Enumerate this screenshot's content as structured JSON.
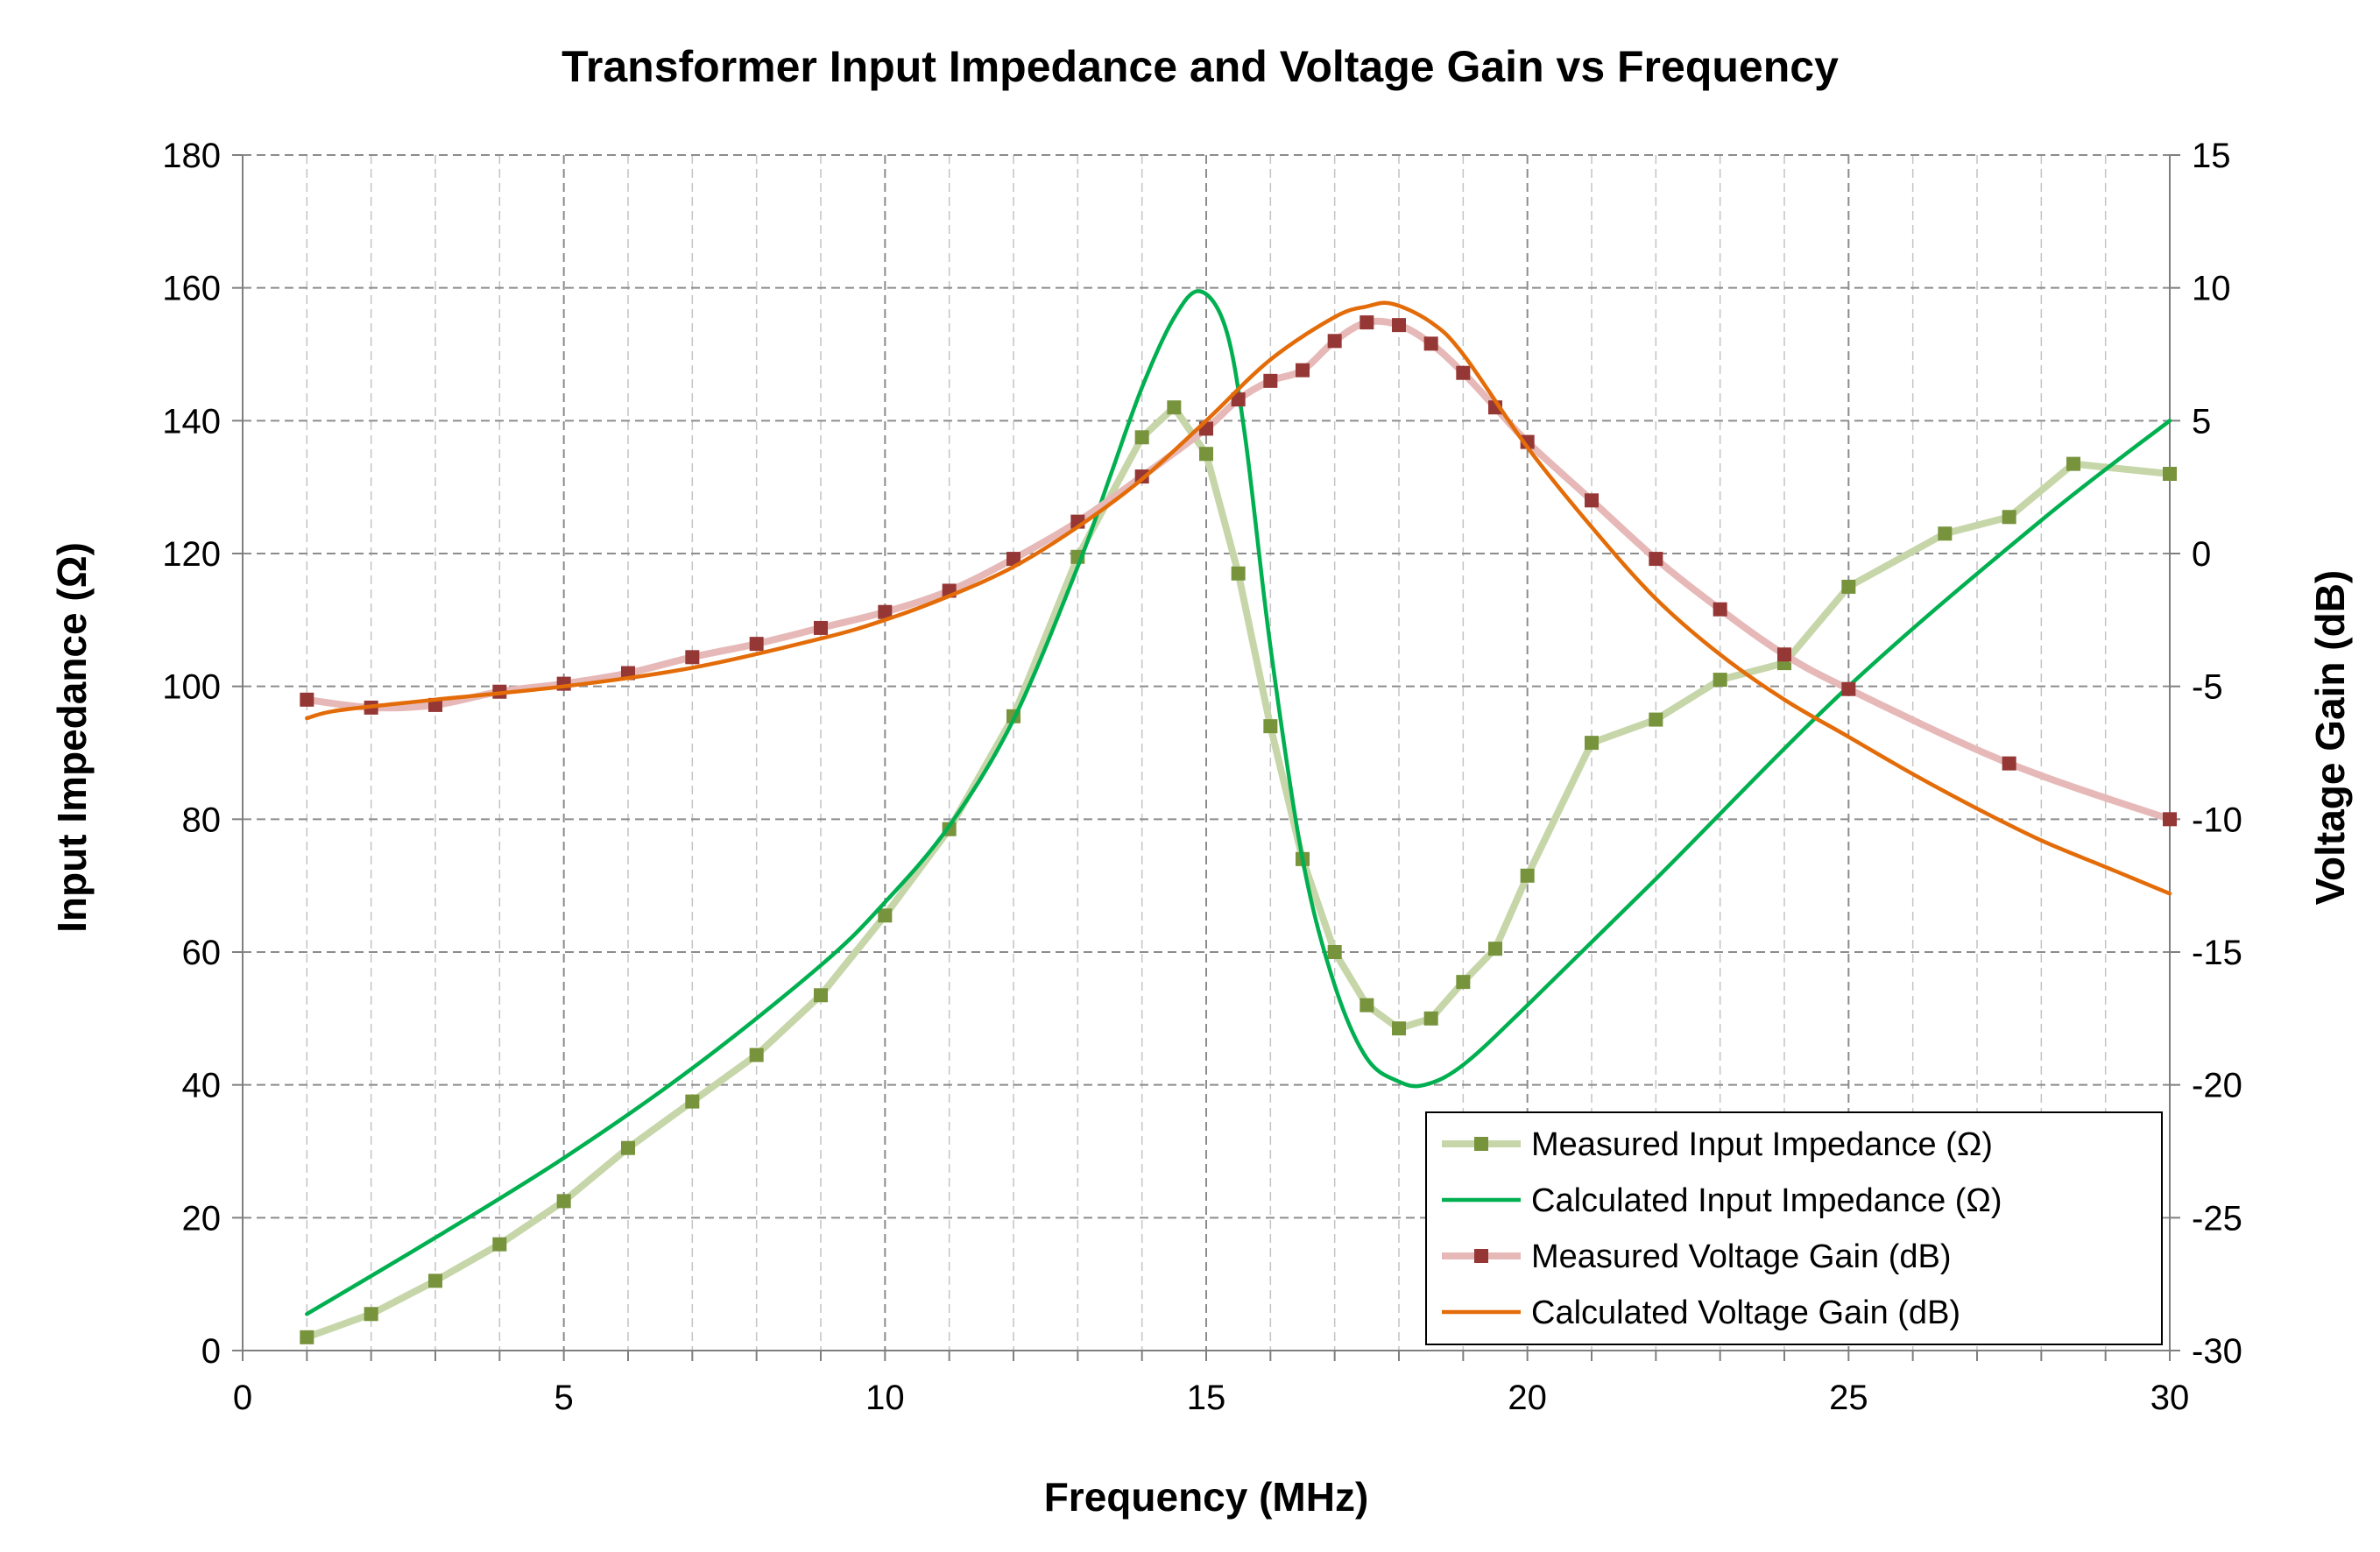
{
  "chart_data": {
    "type": "line",
    "title": "Transformer Input Impedance and Voltage Gain vs Frequency",
    "xlabel": "Frequency (MHz)",
    "ylabel_left": "Input Impedance (Ω)",
    "ylabel_right": "Voltage Gain (dB)",
    "xlim": [
      0,
      30
    ],
    "ylim_left": [
      0,
      180
    ],
    "ylim_right": [
      -30,
      15
    ],
    "x_ticks": [
      0,
      5,
      10,
      15,
      20,
      25,
      30
    ],
    "y_left_ticks": [
      0,
      20,
      40,
      60,
      80,
      100,
      120,
      140,
      160,
      180
    ],
    "y_right_ticks": [
      -30,
      -25,
      -20,
      -15,
      -10,
      -5,
      0,
      5,
      10,
      15
    ],
    "grid": true,
    "legend_position": "bottom-right",
    "series": [
      {
        "name": "Measured Input Impedance (Ω)",
        "axis": "left",
        "color": "#c6d6a9",
        "marker_color": "#77933c",
        "marker": "square",
        "smooth": false,
        "x": [
          1,
          2,
          3,
          4,
          5,
          6,
          7,
          8,
          9,
          10,
          11,
          12,
          13,
          14,
          14.5,
          15,
          15.5,
          16,
          16.5,
          17,
          17.5,
          18,
          18.5,
          19,
          19.5,
          20,
          21,
          22,
          23,
          24,
          25,
          26.5,
          27.5,
          28.5,
          30
        ],
        "y": [
          2,
          5.5,
          10.5,
          16,
          22.5,
          30.5,
          37.5,
          44.5,
          53.5,
          65.5,
          78.5,
          95.5,
          119.5,
          137.5,
          142,
          135,
          117,
          94,
          74,
          60,
          52,
          48.5,
          50,
          55.5,
          60.5,
          71.5,
          91.5,
          95,
          101,
          103.5,
          115,
          123,
          125.5,
          133.5,
          132
        ]
      },
      {
        "name": "Calculated Input Impedance (Ω)",
        "axis": "left",
        "color": "#00b050",
        "smooth": true,
        "x": [
          1,
          3,
          5,
          7,
          9,
          10,
          11,
          12,
          13,
          13.5,
          14,
          14.5,
          14.9,
          15.3,
          15.6,
          16,
          16.5,
          17,
          17.5,
          18,
          18.4,
          19,
          20,
          22,
          25,
          28,
          30
        ],
        "y": [
          5.5,
          17,
          29,
          42.5,
          58,
          67.5,
          79,
          95,
          118,
          131.5,
          145,
          155.5,
          159.5,
          154,
          138,
          106,
          74,
          55,
          44,
          40.5,
          40,
          43,
          52,
          71,
          100,
          125,
          140
        ]
      },
      {
        "name": "Measured Voltage Gain (dB)",
        "axis": "right",
        "color": "#e6b9b8",
        "marker_color": "#953735",
        "marker": "square",
        "smooth": true,
        "x": [
          1,
          2,
          3,
          4,
          5,
          6,
          7,
          8,
          9,
          10,
          11,
          12,
          13,
          14,
          15,
          15.5,
          16,
          16.5,
          17,
          17.5,
          18,
          18.5,
          19,
          19.5,
          20,
          21,
          22,
          23,
          24,
          25,
          27.5,
          30
        ],
        "y": [
          -5.5,
          -5.8,
          -5.7,
          -5.2,
          -4.9,
          -4.5,
          -3.9,
          -3.4,
          -2.8,
          -2.2,
          -1.4,
          -0.2,
          1.2,
          2.9,
          4.7,
          5.8,
          6.5,
          6.9,
          8,
          8.7,
          8.6,
          7.9,
          6.8,
          5.5,
          4.2,
          2,
          -0.2,
          -2.1,
          -3.8,
          -5.1,
          -7.9,
          -10
        ]
      },
      {
        "name": "Calculated Voltage Gain (dB)",
        "axis": "right",
        "color": "#e36c09",
        "smooth": true,
        "x": [
          1,
          1.5,
          3,
          5,
          7,
          9,
          10,
          11,
          12,
          13,
          14,
          15,
          16,
          17,
          17.5,
          17.9,
          18.5,
          19,
          20,
          21,
          22,
          23,
          24,
          25,
          26,
          27,
          28,
          29,
          30
        ],
        "y": [
          -6.2,
          -5.9,
          -5.5,
          -5,
          -4.3,
          -3.2,
          -2.5,
          -1.6,
          -0.5,
          1,
          2.8,
          5,
          7.3,
          8.9,
          9.3,
          9.4,
          8.7,
          7.5,
          4,
          1,
          -1.7,
          -3.8,
          -5.5,
          -6.9,
          -8.3,
          -9.6,
          -10.8,
          -11.8,
          -12.8
        ]
      }
    ]
  }
}
